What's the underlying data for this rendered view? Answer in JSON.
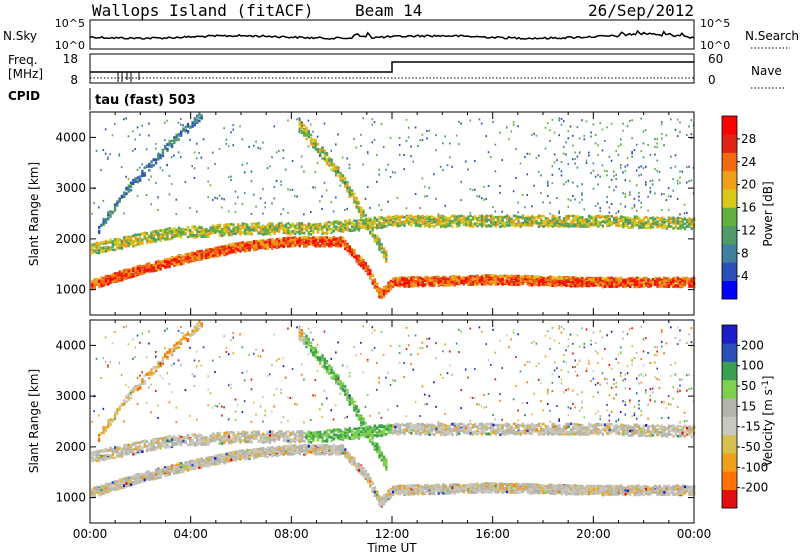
{
  "header": {
    "station": "Wallops Island (fitACF)",
    "beam": "Beam 14",
    "date": "26/Sep/2012"
  },
  "noise_panel": {
    "left_label": "N.Sky",
    "right_label": "N.Search",
    "left_ticks": [
      "10^5",
      "10^0"
    ],
    "right_ticks": [
      "10^5",
      "10^0"
    ]
  },
  "freq_panel": {
    "left_label_line1": "Freq.",
    "left_label_line2": "[MHz]",
    "right_label": "Nave",
    "left_ticks": [
      "18",
      "8"
    ],
    "right_ticks": [
      "60",
      "0"
    ]
  },
  "cpid_panel": {
    "label": "CPID",
    "mode_text": "tau (fast) 503"
  },
  "x_axis": {
    "label": "Time UT",
    "tick_labels": [
      "00:00",
      "04:00",
      "08:00",
      "12:00",
      "16:00",
      "20:00",
      "00:00"
    ]
  },
  "colors": {
    "power_scale": [
      "#0000ff",
      "#2a4fb8",
      "#3f7fa0",
      "#4f9a66",
      "#61b040",
      "#d8c81a",
      "#f0a018",
      "#f06a12",
      "#e22412",
      "#ff0000"
    ],
    "velocity_scale": [
      "#e01010",
      "#ff7400",
      "#f0a018",
      "#d8c050",
      "#c8c8c0",
      "#b4b4ac",
      "#80d050",
      "#3aa050",
      "#2a4fb8",
      "#1c1cc8"
    ]
  },
  "chart_data": [
    {
      "type": "heatmap",
      "title": "",
      "xlabel": "",
      "ylabel": "Slant Range [km]",
      "y_ticks": [
        "1000",
        "2000",
        "3000",
        "4000"
      ],
      "xlim": [
        0,
        24
      ],
      "ylim": [
        500,
        4500
      ],
      "colorbar": {
        "label": "Power [dB]",
        "ticks": [
          "4",
          "8",
          "12",
          "16",
          "20",
          "24",
          "28"
        ],
        "range": [
          0,
          32
        ]
      },
      "echo_bands": [
        {
          "name": "",
          "x": [
            0,
            2,
            4,
            6,
            8,
            10,
            11,
            11.5,
            12,
            16,
            20,
            24
          ],
          "y": [
            1100,
            1400,
            1650,
            1850,
            1950,
            1950,
            1400,
            900,
            1150,
            1200,
            1150,
            1150
          ],
          "level": "high"
        },
        {
          "name": "",
          "x": [
            0,
            3,
            6,
            9,
            12,
            16,
            20,
            24
          ],
          "y": [
            1800,
            2100,
            2200,
            2200,
            2350,
            2350,
            2350,
            2300
          ],
          "level": "mid"
        },
        {
          "name": "",
          "x": [
            0.3,
            1.5,
            3,
            4.5
          ],
          "y": [
            2200,
            3000,
            3800,
            4500
          ],
          "level": "low"
        },
        {
          "name": "",
          "x": [
            8.2,
            10,
            11,
            11.8
          ],
          "y": [
            4300,
            3200,
            2300,
            1600
          ],
          "level": "mid"
        }
      ]
    },
    {
      "type": "heatmap",
      "title": "",
      "xlabel": "Time UT",
      "ylabel": "Slant Range [km]",
      "y_ticks": [
        "1000",
        "2000",
        "3000",
        "4000"
      ],
      "xlim": [
        0,
        24
      ],
      "ylim": [
        500,
        4500
      ],
      "colorbar": {
        "label": "Velocity [m s-1]",
        "label_main": "Velocity [m s",
        "label_sup": "-1",
        "label_end": "]",
        "ticks": [
          "-200",
          "-100",
          "-50",
          "-15",
          "15",
          "50",
          "100",
          "200"
        ],
        "range": [
          -250,
          250
        ]
      }
    }
  ]
}
